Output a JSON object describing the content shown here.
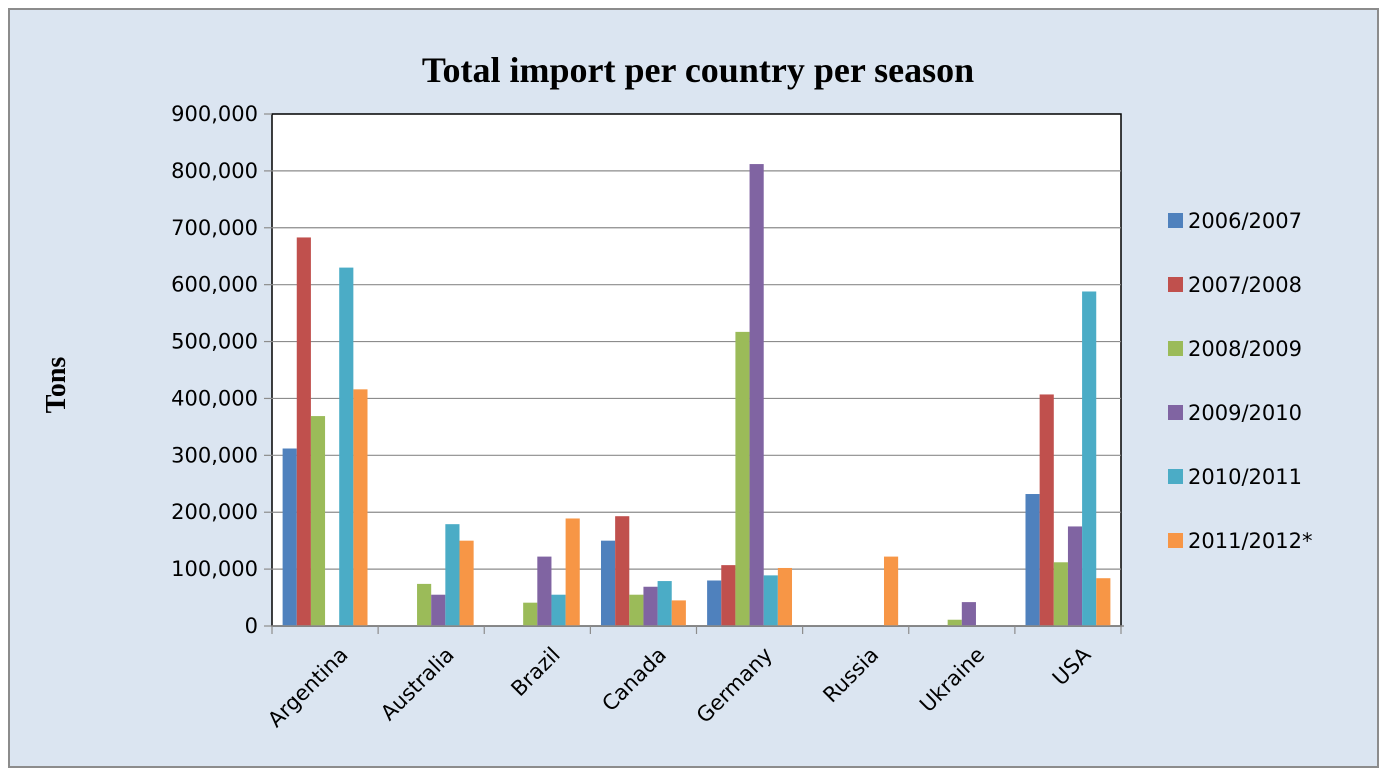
{
  "chart_data": {
    "type": "bar",
    "title": "Total import per country per season",
    "xlabel": "",
    "ylabel": "Tons",
    "ylim": [
      0,
      900000
    ],
    "ytick_step": 100000,
    "ytick_labels": [
      "0",
      "100,000",
      "200,000",
      "300,000",
      "400,000",
      "500,000",
      "600,000",
      "700,000",
      "800,000",
      "900,000"
    ],
    "grid": true,
    "legend_position": "right",
    "categories": [
      "Argentina",
      "Australia",
      "Brazil",
      "Canada",
      "Germany",
      "Russia",
      "Ukraine",
      "USA"
    ],
    "series": [
      {
        "name": "2006/2007",
        "color": "#4f81bd",
        "values": [
          312000,
          0,
          0,
          150000,
          80000,
          0,
          0,
          232000
        ]
      },
      {
        "name": "2007/2008",
        "color": "#c0504d",
        "values": [
          683000,
          0,
          0,
          193000,
          107000,
          0,
          0,
          407000
        ]
      },
      {
        "name": "2008/2009",
        "color": "#9bbb59",
        "values": [
          369000,
          74000,
          41000,
          55000,
          517000,
          0,
          11000,
          112000
        ]
      },
      {
        "name": "2009/2010",
        "color": "#8064a2",
        "values": [
          0,
          55000,
          122000,
          69000,
          812000,
          0,
          42000,
          175000
        ]
      },
      {
        "name": "2010/2011",
        "color": "#4bacc6",
        "values": [
          630000,
          179000,
          55000,
          79000,
          89000,
          0,
          0,
          588000
        ]
      },
      {
        "name": "2011/2012*",
        "color": "#f79646",
        "values": [
          416000,
          150000,
          189000,
          45000,
          102000,
          122000,
          0,
          84000
        ]
      }
    ]
  }
}
